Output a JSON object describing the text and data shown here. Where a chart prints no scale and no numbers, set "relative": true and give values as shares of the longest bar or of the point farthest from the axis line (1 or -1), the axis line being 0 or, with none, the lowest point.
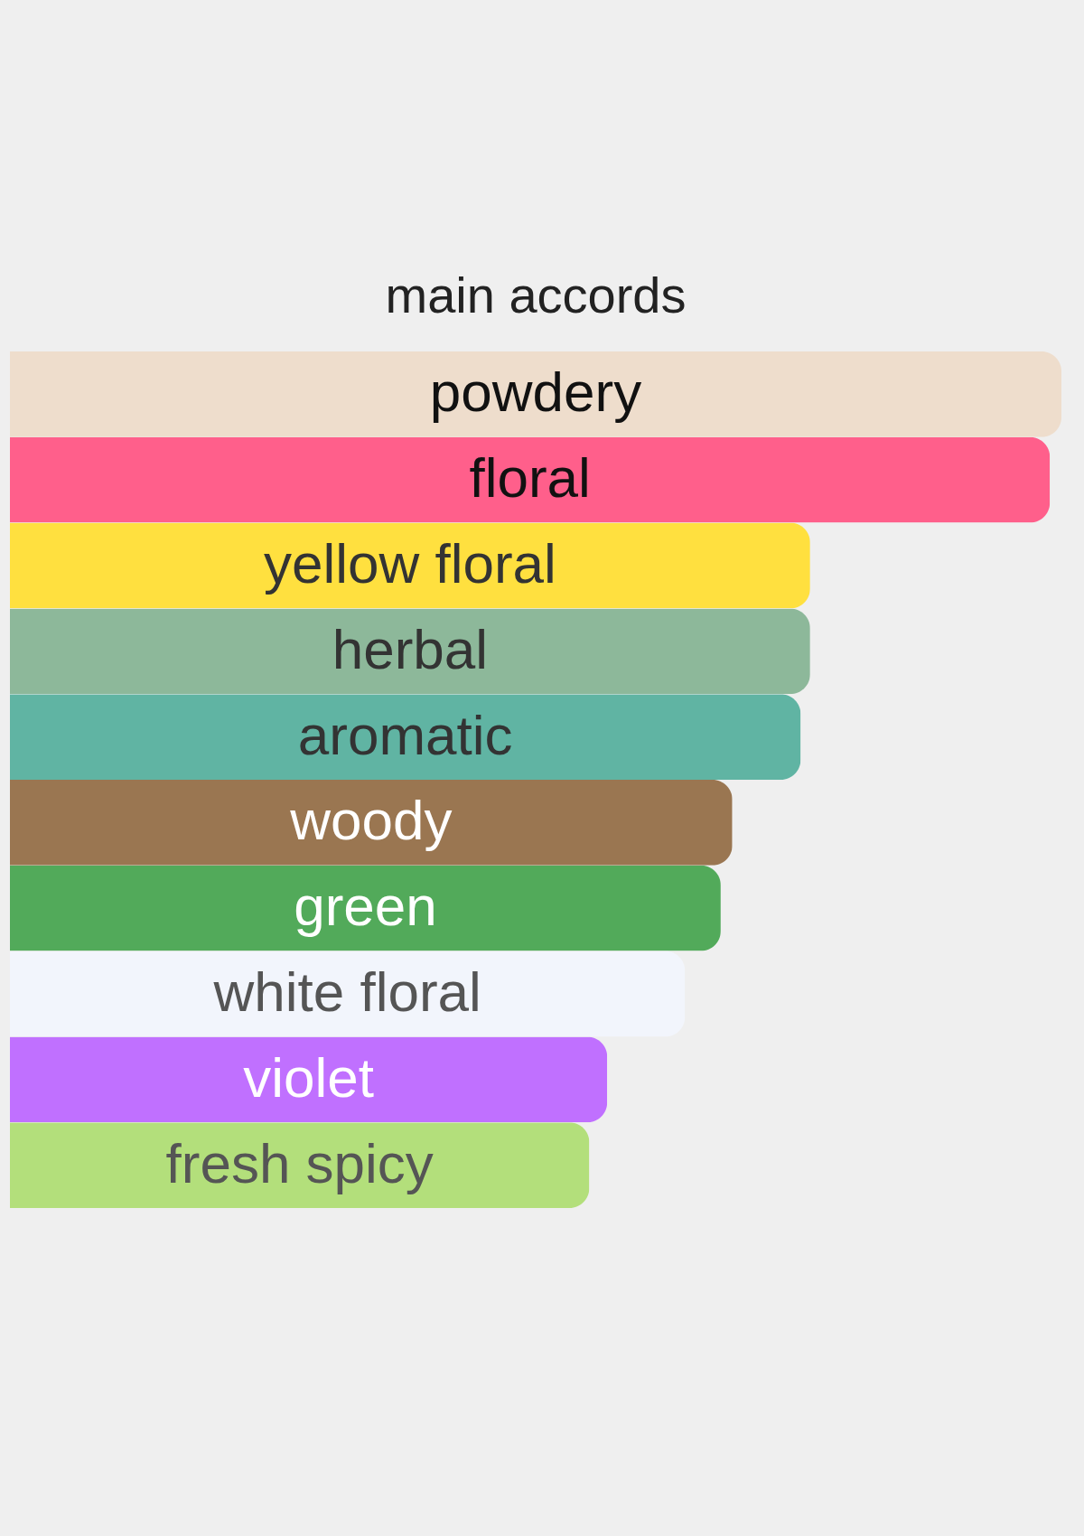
{
  "chart_data": {
    "type": "bar",
    "orientation": "horizontal",
    "relative": true,
    "title": "main accords",
    "categories": [
      "powdery",
      "floral",
      "yellow floral",
      "herbal",
      "aromatic",
      "woody",
      "green",
      "white floral",
      "violet",
      "fresh spicy"
    ],
    "values": [
      1,
      0.989,
      0.761,
      0.761,
      0.752,
      0.687,
      0.676,
      0.642,
      0.568,
      0.551
    ],
    "colors": [
      "#eeddcc",
      "#ff5f8b",
      "#ffe03f",
      "#8db89a",
      "#60b4a3",
      "#9a7651",
      "#52aa5a",
      "#f2f5fc",
      "#c070ff",
      "#b3df7b"
    ]
  }
}
